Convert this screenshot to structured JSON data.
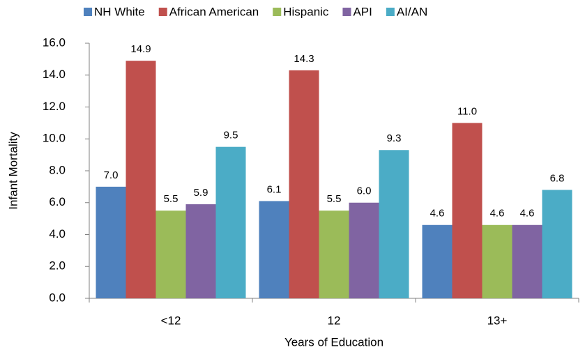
{
  "chart_data": {
    "type": "bar",
    "x_label": "Years of Education",
    "y_label": "Infant Mortality",
    "categories": [
      "<12",
      "12",
      "13+"
    ],
    "series": [
      {
        "name": "NH White",
        "color": "#4f81bd",
        "values": [
          7.0,
          6.1,
          4.6
        ],
        "value_labels": [
          "7.0",
          "6.1",
          "4.6"
        ]
      },
      {
        "name": "African American",
        "color": "#c0504d",
        "values": [
          14.9,
          14.3,
          11.0
        ],
        "value_labels": [
          "14.9",
          "14.3",
          "11.0"
        ]
      },
      {
        "name": "Hispanic",
        "color": "#9bbb59",
        "values": [
          5.5,
          5.5,
          4.6
        ],
        "value_labels": [
          "5.5",
          "5.5",
          "4.6"
        ]
      },
      {
        "name": "API",
        "color": "#8064a2",
        "values": [
          5.9,
          6.0,
          4.6
        ],
        "value_labels": [
          "5.9",
          "6.0",
          "4.6"
        ]
      },
      {
        "name": "AI/AN",
        "color": "#4bacc6",
        "values": [
          9.5,
          9.3,
          6.8
        ],
        "value_labels": [
          "9.5",
          "9.3",
          "6.8"
        ]
      }
    ],
    "ylim": [
      0,
      16
    ],
    "yticks": [
      {
        "value": 0,
        "label": "0.0"
      },
      {
        "value": 2,
        "label": "2.0"
      },
      {
        "value": 4,
        "label": "4.0"
      },
      {
        "value": 6,
        "label": "6.0"
      },
      {
        "value": 8,
        "label": "8.0"
      },
      {
        "value": 10,
        "label": "10.0"
      },
      {
        "value": 12,
        "label": "12.0"
      },
      {
        "value": 14,
        "label": "14.0"
      },
      {
        "value": 16,
        "label": "16.0"
      }
    ],
    "legend": "top"
  }
}
